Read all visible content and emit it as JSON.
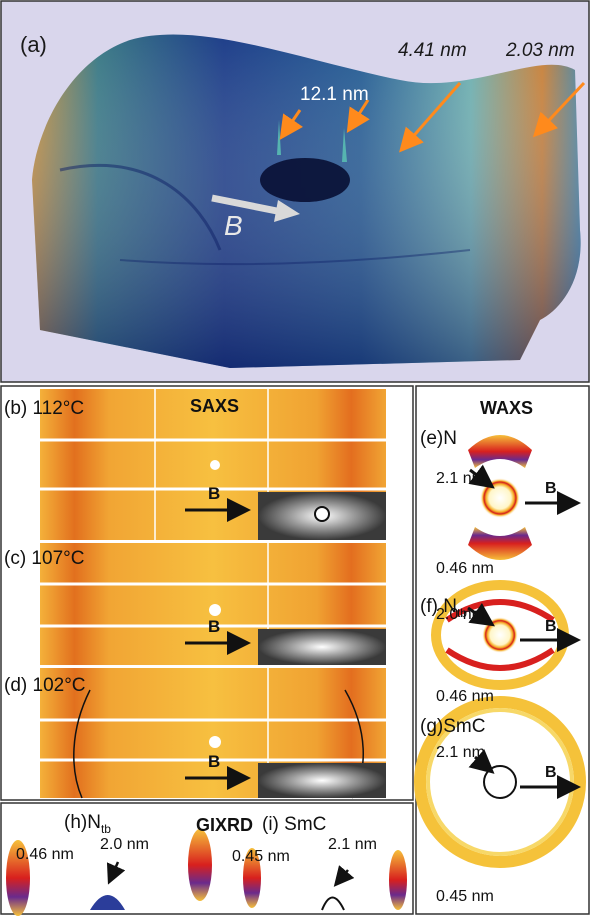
{
  "panel_a": {
    "label": "(a)",
    "peaks": [
      "12.1 nm",
      "4.41 nm",
      "2.03 nm"
    ],
    "field_label": "B"
  },
  "saxs": {
    "title": "SAXS",
    "rows": [
      {
        "label": "(b) 112°C",
        "field": "B"
      },
      {
        "label": "(c) 107°C",
        "field": "B"
      },
      {
        "label": "(d) 102°C",
        "field": "B"
      }
    ]
  },
  "waxs": {
    "title": "WAXS",
    "panels": [
      {
        "label": "(e)N",
        "inner": "2.1 nm",
        "outer": "0.46 nm",
        "field": "B"
      },
      {
        "label": "(f) N",
        "sub": "tb",
        "inner": "2.0 nm",
        "outer": "0.46 nm",
        "field": "B"
      },
      {
        "label": "(g)SmC",
        "inner": "2.1 nm",
        "outer": "0.45 nm",
        "field": "B"
      }
    ]
  },
  "gixrd": {
    "title": "GIXRD",
    "h": {
      "label": "(h)N",
      "sub": "tb",
      "outer": "0.46 nm",
      "inner": "2.0 nm"
    },
    "i": {
      "label": "(i) SmC",
      "outer": "0.45 nm",
      "inner": "2.1 nm"
    }
  },
  "colors": {
    "accent_arrow": "#ff8a1c",
    "frame": "#333333",
    "panel_bg": "#d9d6ec"
  }
}
